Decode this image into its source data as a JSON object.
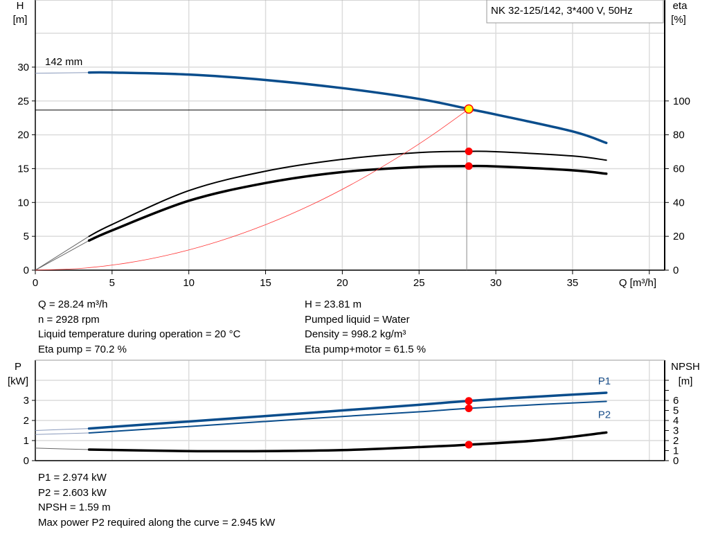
{
  "chart_data": [
    {
      "type": "line",
      "title": "NK 32-125/142, 3*400 V, 50Hz",
      "xlabel": "Q [m³/h]",
      "ylabel": "H\n[m]",
      "ylabel_right": "eta\n[%]",
      "xlim": [
        0,
        41
      ],
      "ylim": [
        0,
        40
      ],
      "ylim_right": [
        0,
        160
      ],
      "xticks": [
        0,
        5,
        10,
        15,
        20,
        25,
        30,
        35
      ],
      "yticks": [
        0,
        5,
        10,
        15,
        20,
        25,
        30
      ],
      "yticks_right": [
        0,
        20,
        40,
        60,
        80,
        100
      ],
      "grid": true,
      "curve_label": "142 mm",
      "series": [
        {
          "id": "H",
          "axis": "left",
          "color": "#0a4d8c",
          "x": [
            0,
            3.5,
            5,
            10,
            15,
            20,
            25,
            28.24,
            30,
            35,
            37.2
          ],
          "y": [
            29.1,
            29.2,
            29.2,
            28.9,
            28.1,
            26.9,
            25.3,
            23.81,
            23.0,
            20.5,
            18.8
          ]
        },
        {
          "id": "eta_pump",
          "axis": "right",
          "color": "#000000",
          "x": [
            0,
            3.5,
            5,
            10,
            15,
            20,
            25,
            28.24,
            30,
            35,
            37.2
          ],
          "y": [
            0,
            20,
            27,
            47,
            58.5,
            65.5,
            69.5,
            70.2,
            70.0,
            67.5,
            65
          ]
        },
        {
          "id": "eta_pump_motor",
          "axis": "right",
          "color": "#000000",
          "x": [
            0,
            3.5,
            5,
            10,
            15,
            20,
            25,
            28.24,
            30,
            35,
            37.2
          ],
          "y": [
            0,
            17.5,
            23.5,
            41,
            51.5,
            58,
            61,
            61.5,
            61.3,
            59,
            57
          ]
        },
        {
          "id": "system_curve",
          "axis": "left",
          "color": "#ff3333",
          "x": [
            0,
            3,
            6,
            9,
            12,
            15,
            18,
            21,
            24,
            26,
            28.24
          ],
          "y": [
            0,
            0.27,
            1.07,
            2.42,
            4.3,
            6.72,
            9.67,
            13.17,
            17.2,
            20.18,
            23.81
          ]
        }
      ],
      "duty_point": {
        "Q": 28.24,
        "H": 23.81,
        "eta_pump": 70.2,
        "eta_pump_motor": 61.5,
        "color": "#ffff00"
      }
    },
    {
      "type": "line",
      "xlim": [
        0,
        41
      ],
      "ylabel": "P\n[kW]",
      "ylabel_right": "NPSH\n[m]",
      "ylim": [
        0,
        5
      ],
      "ylim_right": [
        0,
        10
      ],
      "yticks": [
        0,
        1,
        2,
        3
      ],
      "yticks_right": [
        0,
        1,
        2,
        3,
        4,
        5,
        6
      ],
      "grid": true,
      "series": [
        {
          "id": "P1",
          "name": "P1",
          "axis": "left",
          "color": "#0a4d8c",
          "x": [
            0,
            3.5,
            10,
            15,
            20,
            25,
            28.24,
            33,
            37.2
          ],
          "y": [
            1.5,
            1.6,
            1.95,
            2.22,
            2.5,
            2.78,
            2.974,
            3.2,
            3.38
          ]
        },
        {
          "id": "P2",
          "name": "P2",
          "axis": "left",
          "color": "#0a4d8c",
          "x": [
            0,
            3.5,
            10,
            15,
            20,
            25,
            28.24,
            33,
            37.2
          ],
          "y": [
            1.3,
            1.38,
            1.7,
            1.95,
            2.2,
            2.43,
            2.603,
            2.8,
            2.95
          ]
        },
        {
          "id": "NPSH",
          "axis": "right",
          "color": "#000000",
          "x": [
            0,
            3.5,
            10,
            15,
            20,
            25,
            28.24,
            33,
            37.2
          ],
          "y": [
            1.25,
            1.1,
            0.95,
            0.95,
            1.05,
            1.35,
            1.59,
            2.05,
            2.8
          ]
        }
      ],
      "duty_point": {
        "Q": 28.24,
        "P1": 2.974,
        "P2": 2.603,
        "NPSH": 1.59
      }
    }
  ],
  "info_top": {
    "left": [
      "Q = 28.24 m³/h",
      "n = 2928 rpm",
      "Liquid temperature during operation = 20 °C",
      "Eta pump = 70.2 %"
    ],
    "right": [
      "H = 23.81 m",
      "Pumped liquid = Water",
      "Density = 998.2 kg/m³",
      "Eta pump+motor = 61.5 %"
    ]
  },
  "info_bottom": [
    "P1 = 2.974 kW",
    "P2 = 2.603 kW",
    "NPSH = 1.59 m",
    "Max power P2 required along the curve = 2.945 kW"
  ]
}
